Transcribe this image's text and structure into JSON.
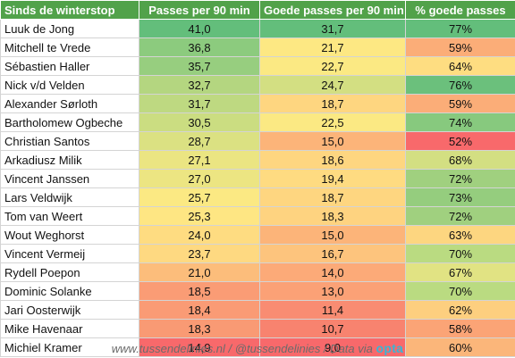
{
  "table": {
    "headers": [
      "Sinds de winterstop",
      "Passes per 90 min",
      "Goede passes per 90 min",
      "% goede passes"
    ],
    "rows": [
      {
        "name": "Luuk de Jong",
        "passes": "41,0",
        "goede": "31,7",
        "pct": "77%",
        "colors": [
          "#63be7b",
          "#63be7b",
          "#63be7b"
        ]
      },
      {
        "name": "Mitchell te Vrede",
        "passes": "36,8",
        "goede": "21,7",
        "pct": "59%",
        "colors": [
          "#8ccb7e",
          "#fde883",
          "#fbad78"
        ]
      },
      {
        "name": "Sébastien Haller",
        "passes": "35,7",
        "goede": "22,7",
        "pct": "64%",
        "colors": [
          "#97ce7f",
          "#fbe983",
          "#fedd81"
        ]
      },
      {
        "name": "Nick v/d Velden",
        "passes": "32,7",
        "goede": "24,7",
        "pct": "76%",
        "colors": [
          "#b4d680",
          "#d3df82",
          "#6bc07c"
        ]
      },
      {
        "name": "Alexander Sørloth",
        "passes": "31,7",
        "goede": "18,7",
        "pct": "59%",
        "colors": [
          "#bed981",
          "#fed680",
          "#fbad78"
        ]
      },
      {
        "name": "Bartholomew Ogbeche",
        "passes": "30,5",
        "goede": "22,5",
        "pct": "74%",
        "colors": [
          "#cbdd81",
          "#fbe983",
          "#87c97e"
        ]
      },
      {
        "name": "Christian Santos",
        "passes": "28,7",
        "goede": "15,0",
        "pct": "52%",
        "colors": [
          "#dbe182",
          "#fcb479",
          "#f8696b"
        ]
      },
      {
        "name": "Arkadiusz Milik",
        "passes": "27,1",
        "goede": "18,6",
        "pct": "68%",
        "colors": [
          "#ebe582",
          "#fed680",
          "#d3df82"
        ]
      },
      {
        "name": "Vincent Janssen",
        "passes": "27,0",
        "goede": "19,4",
        "pct": "72%",
        "colors": [
          "#ece582",
          "#fedb81",
          "#a0d07f"
        ]
      },
      {
        "name": "Lars Veldwijk",
        "passes": "25,7",
        "goede": "18,7",
        "pct": "73%",
        "colors": [
          "#fbe983",
          "#fed680",
          "#95cd7e"
        ]
      },
      {
        "name": "Tom van Weert",
        "passes": "25,3",
        "goede": "18,3",
        "pct": "72%",
        "colors": [
          "#fee683",
          "#fed380",
          "#a0d07f"
        ]
      },
      {
        "name": "Wout Weghorst",
        "passes": "24,0",
        "goede": "15,0",
        "pct": "63%",
        "colors": [
          "#fedc81",
          "#fcb479",
          "#fdd680"
        ]
      },
      {
        "name": "Vincent Vermeij",
        "passes": "23,7",
        "goede": "16,7",
        "pct": "70%",
        "colors": [
          "#fed981",
          "#fdc47d",
          "#badb81"
        ]
      },
      {
        "name": "Rydell Poepon",
        "passes": "21,0",
        "goede": "14,0",
        "pct": "67%",
        "colors": [
          "#fcbd7b",
          "#fcaa78",
          "#e1e383"
        ]
      },
      {
        "name": "Dominic Solanke",
        "passes": "18,5",
        "goede": "13,0",
        "pct": "70%",
        "colors": [
          "#fa9c75",
          "#fba176",
          "#badb81"
        ]
      },
      {
        "name": "Jari Oosterwijk",
        "passes": "18,4",
        "goede": "11,4",
        "pct": "62%",
        "colors": [
          "#fa9b75",
          "#f98c72",
          "#fdcf7f"
        ]
      },
      {
        "name": "Mike Havenaar",
        "passes": "18,3",
        "goede": "10,7",
        "pct": "58%",
        "colors": [
          "#f99a74",
          "#f8836f",
          "#fba476"
        ]
      },
      {
        "name": "Michiel Kramer",
        "passes": "14,9",
        "goede": "9,0",
        "pct": "60%",
        "colors": [
          "#f8696b",
          "#f8696b",
          "#fbb67a"
        ]
      }
    ]
  },
  "footer": {
    "text": "www.tussendelinies.nl / @tussendelinies / Data via ",
    "brand": "opta"
  }
}
